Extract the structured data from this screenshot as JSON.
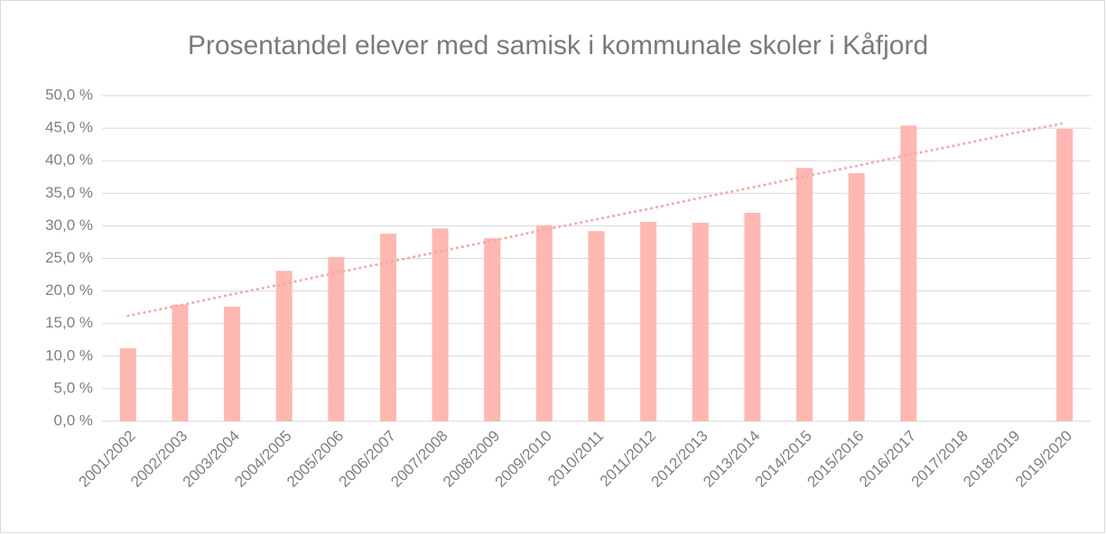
{
  "chart_data": {
    "type": "bar",
    "title": "Prosentandel elever med samisk i kommunale skoler i Kåfjord",
    "categories": [
      "2001/2002",
      "2002/2003",
      "2003/2004",
      "2004/2005",
      "2005/2006",
      "2006/2007",
      "2007/2008",
      "2008/2009",
      "2009/2010",
      "2010/2011",
      "2011/2012",
      "2012/2013",
      "2013/2014",
      "2014/2015",
      "2015/2016",
      "2016/2017",
      "2017/2018",
      "2018/2019",
      "2019/2020"
    ],
    "values": [
      11.2,
      17.9,
      17.6,
      23.1,
      25.2,
      28.8,
      29.6,
      28.1,
      30.1,
      29.2,
      30.6,
      30.5,
      32.0,
      38.9,
      38.1,
      45.4,
      null,
      null,
      44.9
    ],
    "color": "#ffb7b2",
    "trendline": {
      "color": "#f6a8a2",
      "values": [
        16.2,
        17.8,
        19.5,
        21.1,
        22.8,
        24.4,
        26.1,
        27.7,
        29.4,
        31.0,
        32.6,
        34.3,
        35.9,
        37.6,
        39.2,
        40.9,
        42.5,
        44.2,
        45.8
      ]
    },
    "ylim": [
      0,
      50
    ],
    "yticks": [
      {
        "value": 0,
        "label": "0,0 %"
      },
      {
        "value": 5,
        "label": "5,0 %"
      },
      {
        "value": 10,
        "label": "10,0 %"
      },
      {
        "value": 15,
        "label": "15,0 %"
      },
      {
        "value": 20,
        "label": "20,0 %"
      },
      {
        "value": 25,
        "label": "25,0 %"
      },
      {
        "value": 30,
        "label": "30,0 %"
      },
      {
        "value": 35,
        "label": "35,0 %"
      },
      {
        "value": 40,
        "label": "40,0 %"
      },
      {
        "value": 45,
        "label": "45,0 %"
      },
      {
        "value": 50,
        "label": "50,0 %"
      }
    ],
    "grid": true
  }
}
